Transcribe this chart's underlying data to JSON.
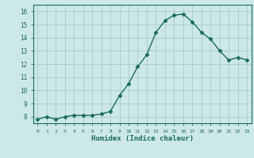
{
  "x": [
    0,
    1,
    2,
    3,
    4,
    5,
    6,
    7,
    8,
    9,
    10,
    11,
    12,
    13,
    14,
    15,
    16,
    17,
    18,
    19,
    20,
    21,
    22,
    23
  ],
  "y": [
    7.8,
    8.0,
    7.8,
    8.0,
    8.1,
    8.1,
    8.1,
    8.2,
    8.4,
    9.6,
    10.5,
    11.8,
    12.7,
    14.4,
    15.3,
    15.7,
    15.8,
    15.2,
    14.4,
    13.9,
    13.0,
    12.3,
    12.5,
    12.3
  ],
  "xlabel": "Humidex (Indice chaleur)",
  "ylim": [
    7.5,
    16.5
  ],
  "xlim": [
    -0.5,
    23.5
  ],
  "yticks": [
    8,
    9,
    10,
    11,
    12,
    13,
    14,
    15,
    16
  ],
  "xticks": [
    0,
    1,
    2,
    3,
    4,
    5,
    6,
    7,
    8,
    9,
    10,
    11,
    12,
    13,
    14,
    15,
    16,
    17,
    18,
    19,
    20,
    21,
    22,
    23
  ],
  "line_color": "#1a6b5a",
  "marker_color": "#1a6b5a",
  "bg_color": "#cce8e8",
  "grid_color": "#aacccc",
  "tick_label_color": "#1a6b5a",
  "xlabel_color": "#1a6b5a"
}
